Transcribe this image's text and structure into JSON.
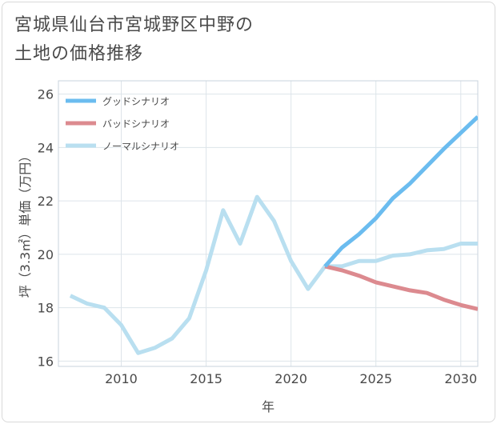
{
  "title_lines": [
    "宮城県仙台市宮城野区中野の",
    "土地の価格推移"
  ],
  "chart_data": {
    "type": "line",
    "xlabel": "年",
    "ylabel": "坪（3.3㎡）単価（万円）",
    "xlim": [
      2006.3,
      2031
    ],
    "ylim": [
      15.8,
      26.5
    ],
    "xticks": [
      2010,
      2015,
      2020,
      2025,
      2030
    ],
    "yticks": [
      16,
      18,
      20,
      22,
      24,
      26
    ],
    "grid": true,
    "legend_position": "top-left",
    "series": [
      {
        "name": "グッドシナリオ",
        "color": "#6bbcef",
        "x": [
          2022,
          2023,
          2024,
          2025,
          2026,
          2027,
          2028,
          2029,
          2030,
          2031
        ],
        "y": [
          19.55,
          20.25,
          20.75,
          21.35,
          22.1,
          22.65,
          23.3,
          23.95,
          24.55,
          25.15
        ]
      },
      {
        "name": "バッドシナリオ",
        "color": "#dc8a8f",
        "x": [
          2022,
          2023,
          2024,
          2025,
          2026,
          2027,
          2028,
          2029,
          2030,
          2031
        ],
        "y": [
          19.55,
          19.4,
          19.2,
          18.95,
          18.8,
          18.65,
          18.55,
          18.3,
          18.1,
          17.95
        ]
      },
      {
        "name": "ノーマルシナリオ",
        "color": "#b9dff0",
        "x": [
          2007,
          2008,
          2009,
          2010,
          2011,
          2012,
          2013,
          2014,
          2015,
          2016,
          2017,
          2018,
          2019,
          2020,
          2021,
          2022,
          2023,
          2024,
          2025,
          2026,
          2027,
          2028,
          2029,
          2030,
          2031
        ],
        "y": [
          18.45,
          18.15,
          18.0,
          17.35,
          16.3,
          16.5,
          16.85,
          17.6,
          19.4,
          21.65,
          20.4,
          22.15,
          21.25,
          19.75,
          18.7,
          19.55,
          19.55,
          19.75,
          19.75,
          19.95,
          20.0,
          20.15,
          20.2,
          20.4,
          20.4
        ]
      }
    ]
  }
}
